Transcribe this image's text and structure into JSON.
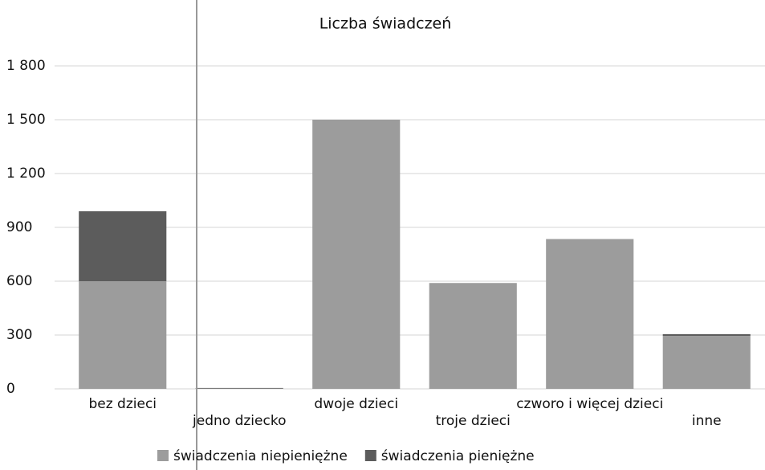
{
  "chart_data": {
    "type": "stacked_bar",
    "title": "Liczba świadczeń",
    "categories": [
      "bez dzieci",
      "jedno dziecko",
      "dwoje dzieci",
      "troje dzieci",
      "czworo i więcej dzieci",
      "inne"
    ],
    "series": [
      {
        "name": "świadczenia niepieniężne",
        "color": "#9c9c9c",
        "values": [
          600,
          2,
          1500,
          590,
          835,
          295
        ]
      },
      {
        "name": "świadczenia pieniężne",
        "color": "#5c5c5c",
        "values": [
          390,
          3,
          0,
          0,
          0,
          10
        ]
      }
    ],
    "ylim": [
      0,
      1800
    ],
    "yticks": [
      0,
      300,
      600,
      900,
      {
        "value": 1200,
        "label": "1 200"
      },
      {
        "value": 1500,
        "label": "1 500"
      },
      {
        "value": 1800,
        "label": "1 800"
      }
    ],
    "grid": true,
    "legend": "bottom"
  }
}
